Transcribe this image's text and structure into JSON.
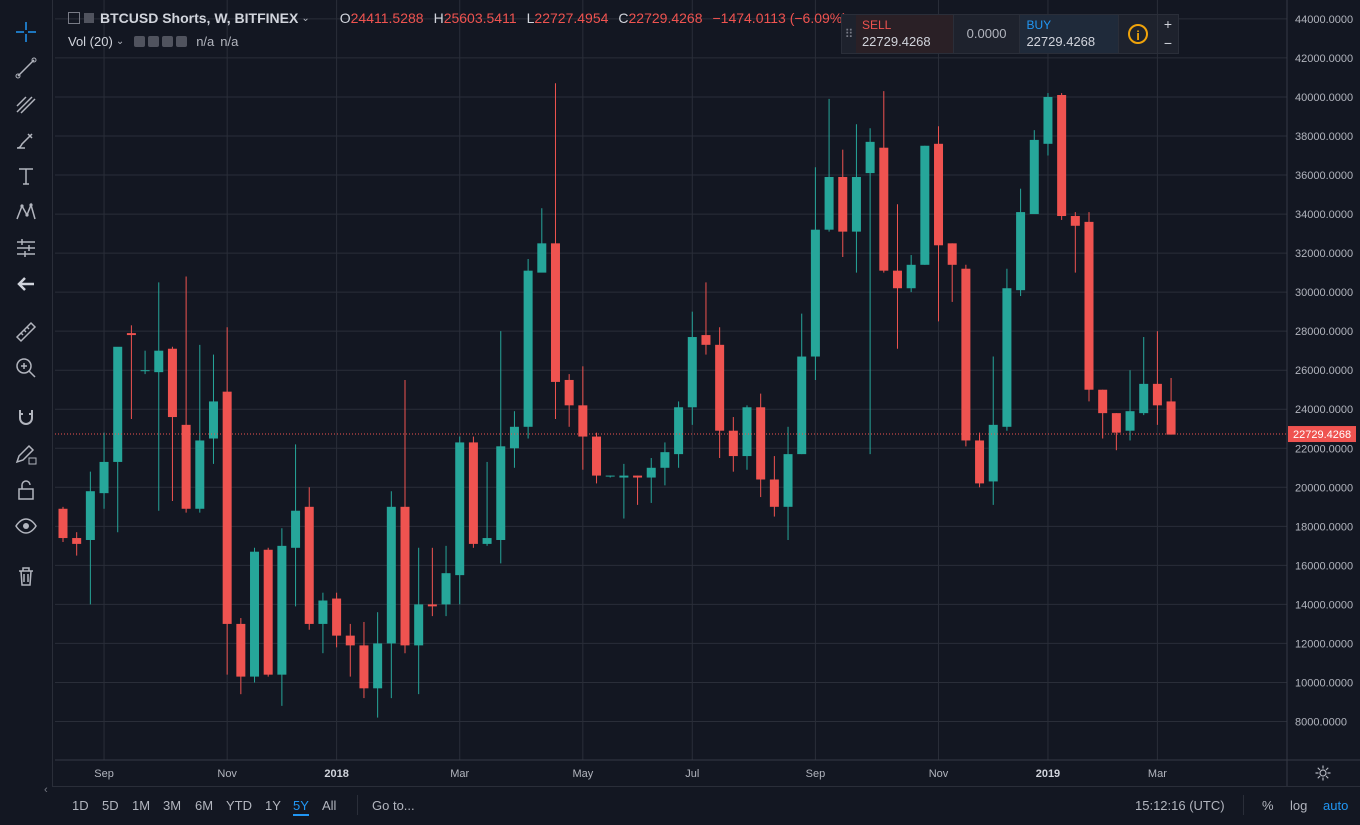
{
  "header": {
    "symbol": "BTCUSD Shorts, W, BITFINEX",
    "ohlc": [
      {
        "label": "O",
        "value": "24411.5288"
      },
      {
        "label": "H",
        "value": "25603.5411"
      },
      {
        "label": "L",
        "value": "22727.4954"
      },
      {
        "label": "C",
        "value": "22729.4268"
      }
    ],
    "change": "−1474.0113 (−6.09%)"
  },
  "volume": {
    "label": "Vol (20)",
    "val1": "n/a",
    "val2": "n/a"
  },
  "trade_panel": {
    "sell_label": "SELL",
    "sell_price": "22729.4268",
    "spread": "0.0000",
    "buy_label": "BUY",
    "buy_price": "22729.4268",
    "info_glyph": "i",
    "plus": "+",
    "minus": "−"
  },
  "toolbar_icons": [
    "crosshair-icon",
    "trend-line-icon",
    "fib-icon",
    "brush-icon",
    "text-icon",
    "pattern-icon",
    "forecast-icon",
    "back-arrow-icon",
    "ruler-icon",
    "zoom-in-icon",
    "magnet-icon",
    "lock-draw-icon",
    "lock-icon",
    "eye-icon",
    "trash-icon"
  ],
  "bottom_bar": {
    "ranges": [
      "1D",
      "5D",
      "1M",
      "3M",
      "6M",
      "YTD",
      "1Y",
      "5Y",
      "All"
    ],
    "active_range": "5Y",
    "goto": "Go to...",
    "time": "15:12:16 (UTC)",
    "percent": "%",
    "log": "log",
    "auto": "auto"
  },
  "chart_data": {
    "type": "candlestick",
    "title": "BTCUSD Shorts, W, BITFINEX",
    "ylim": [
      6000,
      44000
    ],
    "y_ticks": [
      8000,
      10000,
      12000,
      14000,
      16000,
      18000,
      20000,
      22000,
      24000,
      26000,
      28000,
      30000,
      32000,
      34000,
      36000,
      38000,
      40000,
      42000,
      44000
    ],
    "y_tick_labels": [
      "8000.0000",
      "10000.0000",
      "12000.0000",
      "14000.0000",
      "16000.0000",
      "18000.0000",
      "20000.0000",
      "22000.0000",
      "24000.0000",
      "26000.0000",
      "28000.0000",
      "30000.0000",
      "32000.0000",
      "34000.0000",
      "36000.0000",
      "38000.0000",
      "40000.0000",
      "42000.0000",
      "44000.0000"
    ],
    "x_labels": [
      "Sep",
      "Nov",
      "2018",
      "Mar",
      "May",
      "Jul",
      "Sep",
      "Nov",
      "2019",
      "Mar"
    ],
    "x_label_weeks": [
      3,
      12,
      20,
      29,
      38,
      46,
      55,
      64,
      72,
      80
    ],
    "last_price": 22729.4268,
    "last_price_label": "22729.4268",
    "colors": {
      "up": "#26a69a",
      "down": "#ef5350",
      "grid": "#2a2e39",
      "axis_text": "#b2b5be"
    },
    "candles": [
      [
        18900,
        17400,
        19000,
        17200
      ],
      [
        17400,
        17100,
        17700,
        16500
      ],
      [
        17300,
        19800,
        20800,
        14000
      ],
      [
        19700,
        21300,
        22800,
        18900
      ],
      [
        21300,
        27200,
        26100,
        17700
      ],
      [
        27900,
        27800,
        28300,
        23500
      ],
      [
        26000,
        26000,
        27000,
        25800
      ],
      [
        25900,
        27000,
        30500,
        18800
      ],
      [
        27100,
        23600,
        27200,
        19300
      ],
      [
        23200,
        18900,
        30800,
        18700
      ],
      [
        18900,
        22400,
        27300,
        18700
      ],
      [
        22500,
        24400,
        26800,
        21200
      ],
      [
        24900,
        13000,
        28200,
        10400
      ],
      [
        13000,
        10300,
        13300,
        9400
      ],
      [
        10300,
        16700,
        16900,
        10000
      ],
      [
        16800,
        10400,
        16900,
        10300
      ],
      [
        10400,
        17000,
        17900,
        8800
      ],
      [
        16900,
        18800,
        22200,
        13900
      ],
      [
        19000,
        13000,
        20000,
        12700
      ],
      [
        13000,
        14200,
        14600,
        11500
      ],
      [
        14300,
        12400,
        14600,
        11800
      ],
      [
        12400,
        11900,
        13000,
        10300
      ],
      [
        11900,
        9700,
        13100,
        9200
      ],
      [
        9700,
        12000,
        13600,
        8200
      ],
      [
        12000,
        19000,
        19800,
        9200
      ],
      [
        19000,
        11900,
        25500,
        11500
      ],
      [
        11900,
        14000,
        16900,
        9400
      ],
      [
        14000,
        13900,
        16900,
        13400
      ],
      [
        14000,
        15600,
        17000,
        13400
      ],
      [
        15500,
        22300,
        22600,
        14000
      ],
      [
        22300,
        17100,
        22600,
        16900
      ],
      [
        17100,
        17400,
        21300,
        17000
      ],
      [
        17300,
        22100,
        28000,
        16100
      ],
      [
        22000,
        23100,
        23900,
        21000
      ],
      [
        23100,
        31100,
        31700,
        22500
      ],
      [
        31000,
        32500,
        34300,
        31800
      ],
      [
        32500,
        25400,
        40700,
        23500
      ],
      [
        25500,
        24200,
        25800,
        23100
      ],
      [
        24200,
        22600,
        26200,
        20900
      ],
      [
        22600,
        20600,
        22800,
        20200
      ],
      [
        20600,
        20600,
        20600,
        20500
      ],
      [
        20500,
        20600,
        21200,
        18400
      ],
      [
        20600,
        20500,
        20600,
        19100
      ],
      [
        20500,
        21000,
        21500,
        19200
      ],
      [
        21000,
        21800,
        22300,
        20100
      ],
      [
        21700,
        24100,
        24400,
        21000
      ],
      [
        24100,
        27700,
        29000,
        23200
      ],
      [
        27800,
        27300,
        30500,
        26800
      ],
      [
        27300,
        22900,
        28200,
        21500
      ],
      [
        22900,
        21600,
        23600,
        20800
      ],
      [
        21600,
        24100,
        24200,
        20900
      ],
      [
        24100,
        20400,
        24800,
        19500
      ],
      [
        20400,
        19000,
        21600,
        18500
      ],
      [
        19000,
        21700,
        23100,
        17300
      ],
      [
        21700,
        26700,
        28900,
        21700
      ],
      [
        26700,
        33200,
        36400,
        25500
      ],
      [
        33200,
        35900,
        39900,
        33100
      ],
      [
        35900,
        33100,
        37300,
        31800
      ],
      [
        33100,
        35900,
        38600,
        31000
      ],
      [
        36100,
        37700,
        38400,
        21700
      ],
      [
        37400,
        31100,
        40300,
        31000
      ],
      [
        31100,
        30200,
        34500,
        27100
      ],
      [
        30200,
        31400,
        31900,
        30000
      ],
      [
        31400,
        37500,
        37500,
        31400
      ],
      [
        37600,
        32400,
        38500,
        28500
      ],
      [
        32500,
        31400,
        32500,
        29500
      ],
      [
        31200,
        22400,
        31400,
        22100
      ],
      [
        22400,
        20200,
        22800,
        20000
      ],
      [
        20300,
        23200,
        26700,
        19100
      ],
      [
        23100,
        30200,
        31200,
        22900
      ],
      [
        30100,
        34100,
        35300,
        29800
      ],
      [
        34000,
        37800,
        38300,
        34100
      ],
      [
        37600,
        40000,
        40200,
        37000
      ],
      [
        40100,
        33900,
        40200,
        33700
      ],
      [
        33900,
        33400,
        34100,
        31000
      ],
      [
        33600,
        25000,
        34100,
        24400
      ],
      [
        25000,
        23800,
        25000,
        22500
      ],
      [
        23800,
        22800,
        23800,
        21900
      ],
      [
        22900,
        23900,
        26000,
        22400
      ],
      [
        23800,
        25300,
        27700,
        23700
      ],
      [
        25300,
        24200,
        28000,
        23200
      ],
      [
        24400,
        22700,
        25600,
        22700
      ]
    ]
  }
}
